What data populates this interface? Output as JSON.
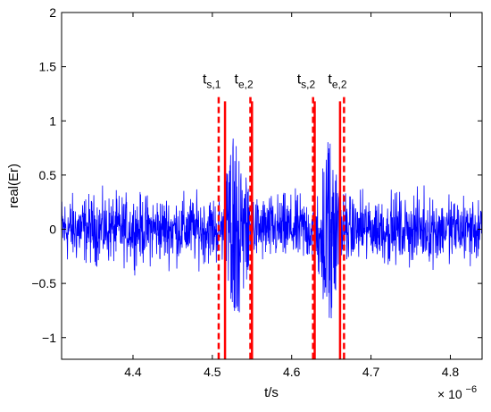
{
  "chart_data": {
    "type": "line",
    "title": "",
    "xlabel": "t/s",
    "ylabel": "real(Er)",
    "x_multiplier": "× 10",
    "x_multiplier_exp": "−6",
    "xlim": [
      4.31,
      4.84
    ],
    "ylim": [
      -1.2,
      2.0
    ],
    "x_ticks": [
      4.4,
      4.5,
      4.6,
      4.7,
      4.8
    ],
    "y_ticks": [
      -1,
      -0.5,
      0,
      0.5,
      1,
      1.5,
      2
    ],
    "x_tick_labels": [
      "4.4",
      "4.5",
      "4.6",
      "4.7",
      "4.8"
    ],
    "y_tick_labels": [
      "−1",
      "−0.5",
      "0",
      "0.5",
      "1",
      "1.5",
      "2"
    ],
    "grid": false,
    "series": [
      {
        "color": "#0000ff",
        "noise_amplitude": 0.4,
        "bursts": [
          {
            "start": 4.513,
            "end": 4.548,
            "peak": 1.0,
            "min": -0.95
          },
          {
            "start": 4.632,
            "end": 4.662,
            "peak": 0.95,
            "min": -0.95
          }
        ]
      }
    ],
    "markers": [
      {
        "x": 4.508,
        "style": "dashed",
        "label": "t",
        "sub": "s,1",
        "y_top": 1.22
      },
      {
        "x": 4.516,
        "style": "solid",
        "label": "",
        "sub": "",
        "y_top": 1.18
      },
      {
        "x": 4.548,
        "style": "dashed",
        "label": "t",
        "sub": "e,2",
        "y_top": 1.22
      },
      {
        "x": 4.55,
        "style": "solid",
        "label": "",
        "sub": "",
        "y_top": 1.18
      },
      {
        "x": 4.627,
        "style": "dashed",
        "label": "t",
        "sub": "s,2",
        "y_top": 1.22
      },
      {
        "x": 4.629,
        "style": "solid",
        "label": "",
        "sub": "",
        "y_top": 1.18
      },
      {
        "x": 4.661,
        "style": "solid",
        "label": "",
        "sub": "",
        "y_top": 1.18
      },
      {
        "x": 4.666,
        "style": "dashed",
        "label": "t",
        "sub": "e,2",
        "y_top": 1.22
      }
    ],
    "marker_color": "#ff0000"
  }
}
